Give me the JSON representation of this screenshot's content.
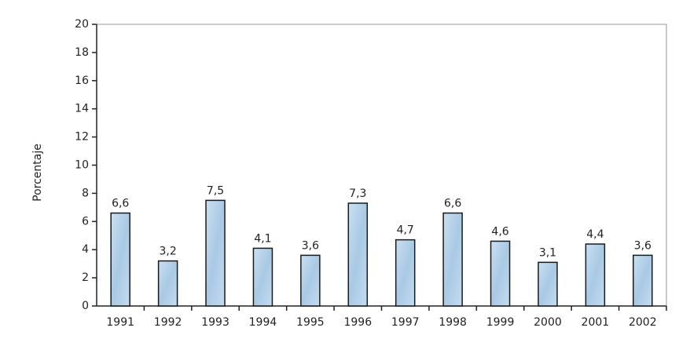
{
  "chart_data": {
    "type": "bar",
    "y_axis_label": "Porcentaje",
    "categories": [
      "1991",
      "1992",
      "1993",
      "1994",
      "1995",
      "1996",
      "1997",
      "1998",
      "1999",
      "2000",
      "2001",
      "2002"
    ],
    "values": [
      6.6,
      3.2,
      7.5,
      4.1,
      3.6,
      7.3,
      4.7,
      6.6,
      4.6,
      3.1,
      4.4,
      3.6
    ],
    "value_labels": [
      "6,6",
      "3,2",
      "7,5",
      "4,1",
      "3,6",
      "7,3",
      "4,7",
      "6,6",
      "4,6",
      "3,1",
      "4,4",
      "3,6"
    ],
    "color": "#b9d5ec",
    "ylim": [
      0,
      20
    ],
    "yticks": [
      0,
      2,
      4,
      6,
      8,
      10,
      12,
      14,
      16,
      18,
      20
    ],
    "grid": false
  }
}
